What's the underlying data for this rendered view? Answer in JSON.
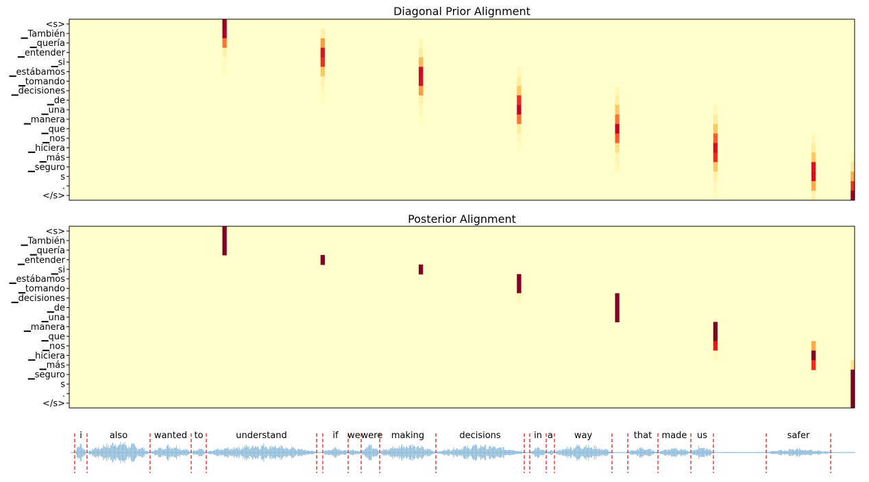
{
  "chart_data": [
    {
      "type": "heatmap",
      "title": "Diagonal Prior Alignment",
      "colormap": "YlOrRd",
      "y_tick_labels": [
        "<s>",
        "▁También",
        "▁quería",
        "▁entender",
        "▁si",
        "▁estábamos",
        "▁tomando",
        "▁decisiones",
        "▁de",
        "▁una",
        "▁manera",
        "▁que",
        "▁nos",
        "▁hiciera",
        "▁más",
        "▁seguro",
        "s",
        ".",
        "</s>"
      ],
      "columns_count": 200,
      "column_activity": [
        {
          "column": 39,
          "values": [
            0.95,
            0.9,
            0.55,
            0.1,
            0.04,
            0.02
          ]
        },
        {
          "column": 64,
          "values": [
            0,
            0.1,
            0.45,
            0.78,
            0.7,
            0.3,
            0.08,
            0.04,
            0.02
          ]
        },
        {
          "column": 89,
          "values": [
            0,
            0,
            0.05,
            0.12,
            0.35,
            0.82,
            0.8,
            0.45,
            0.1,
            0.05,
            0.03
          ]
        },
        {
          "column": 114,
          "values": [
            0,
            0,
            0,
            0,
            0,
            0.05,
            0.12,
            0.3,
            0.7,
            0.85,
            0.55,
            0.12,
            0.05,
            0.02
          ]
        },
        {
          "column": 139,
          "values": [
            0,
            0,
            0,
            0,
            0,
            0,
            0,
            0.05,
            0.12,
            0.3,
            0.55,
            0.85,
            0.6,
            0.2,
            0.08,
            0.04
          ]
        },
        {
          "column": 164,
          "values": [
            0,
            0,
            0,
            0,
            0,
            0,
            0,
            0,
            0,
            0.05,
            0.12,
            0.3,
            0.6,
            0.8,
            0.7,
            0.3,
            0.1,
            0.05,
            0.03
          ]
        },
        {
          "column": 189,
          "values": [
            0,
            0,
            0,
            0,
            0,
            0,
            0,
            0,
            0,
            0,
            0,
            0,
            0.05,
            0.12,
            0.3,
            0.78,
            0.8,
            0.4,
            0.1
          ]
        },
        {
          "column": 199,
          "values": [
            0,
            0,
            0,
            0,
            0,
            0,
            0,
            0,
            0,
            0,
            0,
            0,
            0,
            0,
            0.05,
            0.15,
            0.4,
            0.7,
            0.95
          ]
        }
      ]
    },
    {
      "type": "heatmap",
      "title": "Posterior Alignment",
      "colormap": "YlOrRd",
      "y_tick_labels": [
        "<s>",
        "▁También",
        "▁quería",
        "▁entender",
        "▁si",
        "▁estábamos",
        "▁tomando",
        "▁decisiones",
        "▁de",
        "▁una",
        "▁manera",
        "▁que",
        "▁nos",
        "▁hiciera",
        "▁más",
        "▁seguro",
        "s",
        ".",
        "</s>"
      ],
      "columns_count": 200,
      "column_activity": [
        {
          "column": 39,
          "values": [
            1.0,
            1.0,
            1.0
          ]
        },
        {
          "column": 64,
          "values": [
            0,
            0,
            0,
            1.0
          ]
        },
        {
          "column": 89,
          "values": [
            0,
            0,
            0,
            0,
            1.0
          ]
        },
        {
          "column": 114,
          "values": [
            0,
            0,
            0,
            0,
            0,
            1.0,
            1.0,
            0.05
          ]
        },
        {
          "column": 139,
          "values": [
            0,
            0,
            0,
            0,
            0,
            0,
            0,
            1.0,
            1.0,
            1.0
          ]
        },
        {
          "column": 164,
          "values": [
            0,
            0,
            0,
            0,
            0,
            0,
            0,
            0,
            0,
            0,
            1.0,
            1.0,
            0.75,
            0.05
          ]
        },
        {
          "column": 189,
          "values": [
            0,
            0,
            0,
            0,
            0,
            0,
            0,
            0,
            0,
            0,
            0,
            0,
            0.4,
            1.0,
            0.7
          ]
        },
        {
          "column": 199,
          "values": [
            0,
            0,
            0,
            0,
            0,
            0,
            0,
            0,
            0,
            0,
            0,
            0,
            0,
            0,
            0.2,
            1.0,
            1.0,
            1.0,
            1.0
          ]
        }
      ]
    },
    {
      "type": "waveform",
      "words": [
        "i",
        "also",
        "wanted",
        "to",
        "understand",
        "if",
        "we",
        "were",
        "making",
        "decisions",
        "in",
        "a",
        "way",
        "that",
        "made",
        "us",
        "safer"
      ],
      "wave_color": "#8fbcdb",
      "boundary_color": "#e02020"
    }
  ]
}
